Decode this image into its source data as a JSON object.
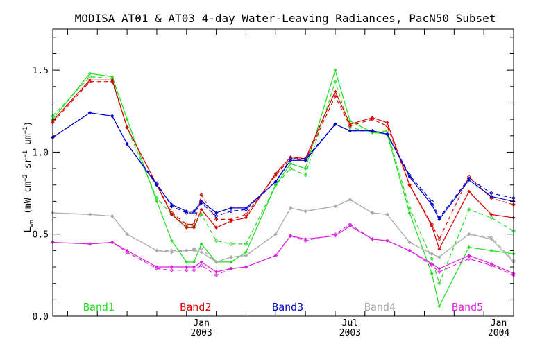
{
  "chart_data": {
    "type": "line",
    "title": "MODISA AT01 & AT03 4-day Water-Leaving Radiances, PacN50 Subset",
    "ylabel": "L_wn (mW cm^-2 sr^-1 um^-1)",
    "ylabel_parts": {
      "main": "L",
      "sub": "wn",
      "pre1": " (mW cm",
      "sup1": "−2",
      "pre2": " sr",
      "sup2": "−1",
      "pre3": " um",
      "sup3": "−1",
      "post": ")"
    },
    "ylim": [
      0.0,
      1.75
    ],
    "y_ticks": [
      "0.0",
      "0.5",
      "1.0",
      "1.5"
    ],
    "y_tick_values": [
      0.0,
      0.5,
      1.0,
      1.5
    ],
    "xlim": [
      0,
      31
    ],
    "x_month_ticks": [
      1,
      3,
      5,
      7,
      9,
      11,
      13,
      15,
      17,
      19,
      21,
      23,
      25,
      27,
      29,
      31
    ],
    "x_major_labels": [
      {
        "x": 10,
        "month": "Jan",
        "year": "2003"
      },
      {
        "x": 20,
        "month": "Jul",
        "year": "2003"
      },
      {
        "x": 30,
        "month": "Jan",
        "year": "2004"
      }
    ],
    "x": [
      0.0,
      2.5,
      4.0,
      5.0,
      7.0,
      8.0,
      9.0,
      9.5,
      10.0,
      11.0,
      12.0,
      13.0,
      15.0,
      16.0,
      17.0,
      19.0,
      20.0,
      21.5,
      22.5,
      24.0,
      25.5,
      26.0,
      28.0,
      29.5,
      31.0
    ],
    "series": [
      {
        "name": "Band1",
        "color": "#22dd22",
        "solid": [
          1.2,
          1.48,
          1.46,
          1.2,
          0.7,
          0.46,
          0.33,
          0.33,
          0.44,
          0.33,
          0.33,
          0.39,
          0.8,
          0.93,
          0.9,
          1.5,
          1.19,
          1.12,
          1.11,
          0.63,
          0.26,
          0.06,
          0.42,
          0.4,
          0.38
        ],
        "dashed": [
          1.22,
          1.46,
          1.45,
          1.15,
          0.72,
          0.62,
          0.55,
          0.55,
          0.62,
          0.46,
          0.44,
          0.44,
          0.8,
          0.9,
          0.86,
          1.43,
          1.15,
          1.12,
          1.13,
          0.66,
          0.35,
          0.2,
          0.65,
          0.6,
          0.52
        ]
      },
      {
        "name": "Band2",
        "color": "#dd0000",
        "solid": [
          1.19,
          1.44,
          1.44,
          1.15,
          0.8,
          0.62,
          0.54,
          0.54,
          0.65,
          0.54,
          0.58,
          0.6,
          0.87,
          0.97,
          0.96,
          1.37,
          1.17,
          1.21,
          1.18,
          0.8,
          0.55,
          0.41,
          0.76,
          0.62,
          0.6
        ],
        "dashed": [
          1.18,
          1.43,
          1.43,
          1.15,
          0.8,
          0.63,
          0.56,
          0.56,
          0.74,
          0.59,
          0.59,
          0.62,
          0.86,
          0.96,
          0.95,
          1.34,
          1.16,
          1.2,
          1.16,
          0.8,
          0.56,
          0.47,
          0.85,
          0.72,
          0.68
        ]
      },
      {
        "name": "Band3",
        "color": "#0000cc",
        "solid": [
          1.09,
          1.24,
          1.22,
          1.05,
          0.8,
          0.68,
          0.64,
          0.64,
          0.7,
          0.63,
          0.66,
          0.66,
          0.82,
          0.95,
          0.95,
          1.17,
          1.13,
          1.13,
          1.11,
          0.85,
          0.68,
          0.59,
          0.83,
          0.73,
          0.7
        ],
        "dashed": [
          1.09,
          1.24,
          1.22,
          1.05,
          0.81,
          0.67,
          0.63,
          0.63,
          0.69,
          0.61,
          0.64,
          0.65,
          0.82,
          0.96,
          0.96,
          1.17,
          1.13,
          1.13,
          1.11,
          0.86,
          0.7,
          0.6,
          0.84,
          0.75,
          0.72
        ]
      },
      {
        "name": "Band4",
        "color": "#aaaaaa",
        "solid": [
          0.63,
          0.62,
          0.61,
          0.5,
          0.4,
          0.39,
          0.4,
          0.4,
          0.39,
          0.33,
          0.36,
          0.37,
          0.5,
          0.66,
          0.64,
          0.67,
          0.71,
          0.63,
          0.62,
          0.45,
          0.38,
          0.36,
          0.5,
          0.47,
          0.33
        ],
        "dashed": [
          0.63,
          0.62,
          0.61,
          0.5,
          0.4,
          0.4,
          0.4,
          0.41,
          0.41,
          0.33,
          0.36,
          0.37,
          0.5,
          0.66,
          0.64,
          0.67,
          0.71,
          0.63,
          0.62,
          0.45,
          0.38,
          0.36,
          0.5,
          0.48,
          0.34
        ]
      },
      {
        "name": "Band5",
        "color": "#dd22dd",
        "solid": [
          0.45,
          0.44,
          0.45,
          0.4,
          0.3,
          0.3,
          0.3,
          0.3,
          0.33,
          0.27,
          0.29,
          0.3,
          0.37,
          0.49,
          0.47,
          0.49,
          0.55,
          0.47,
          0.46,
          0.4,
          0.32,
          0.29,
          0.37,
          0.32,
          0.26
        ],
        "dashed": [
          0.45,
          0.44,
          0.45,
          0.39,
          0.29,
          0.28,
          0.28,
          0.28,
          0.31,
          0.25,
          0.29,
          0.3,
          0.37,
          0.49,
          0.46,
          0.5,
          0.56,
          0.47,
          0.46,
          0.4,
          0.31,
          0.27,
          0.35,
          0.31,
          0.25
        ]
      }
    ],
    "legend": [
      "Band1",
      "Band2",
      "Band3",
      "Band4",
      "Band5"
    ],
    "legend_placement": "bottom, inside plot"
  }
}
